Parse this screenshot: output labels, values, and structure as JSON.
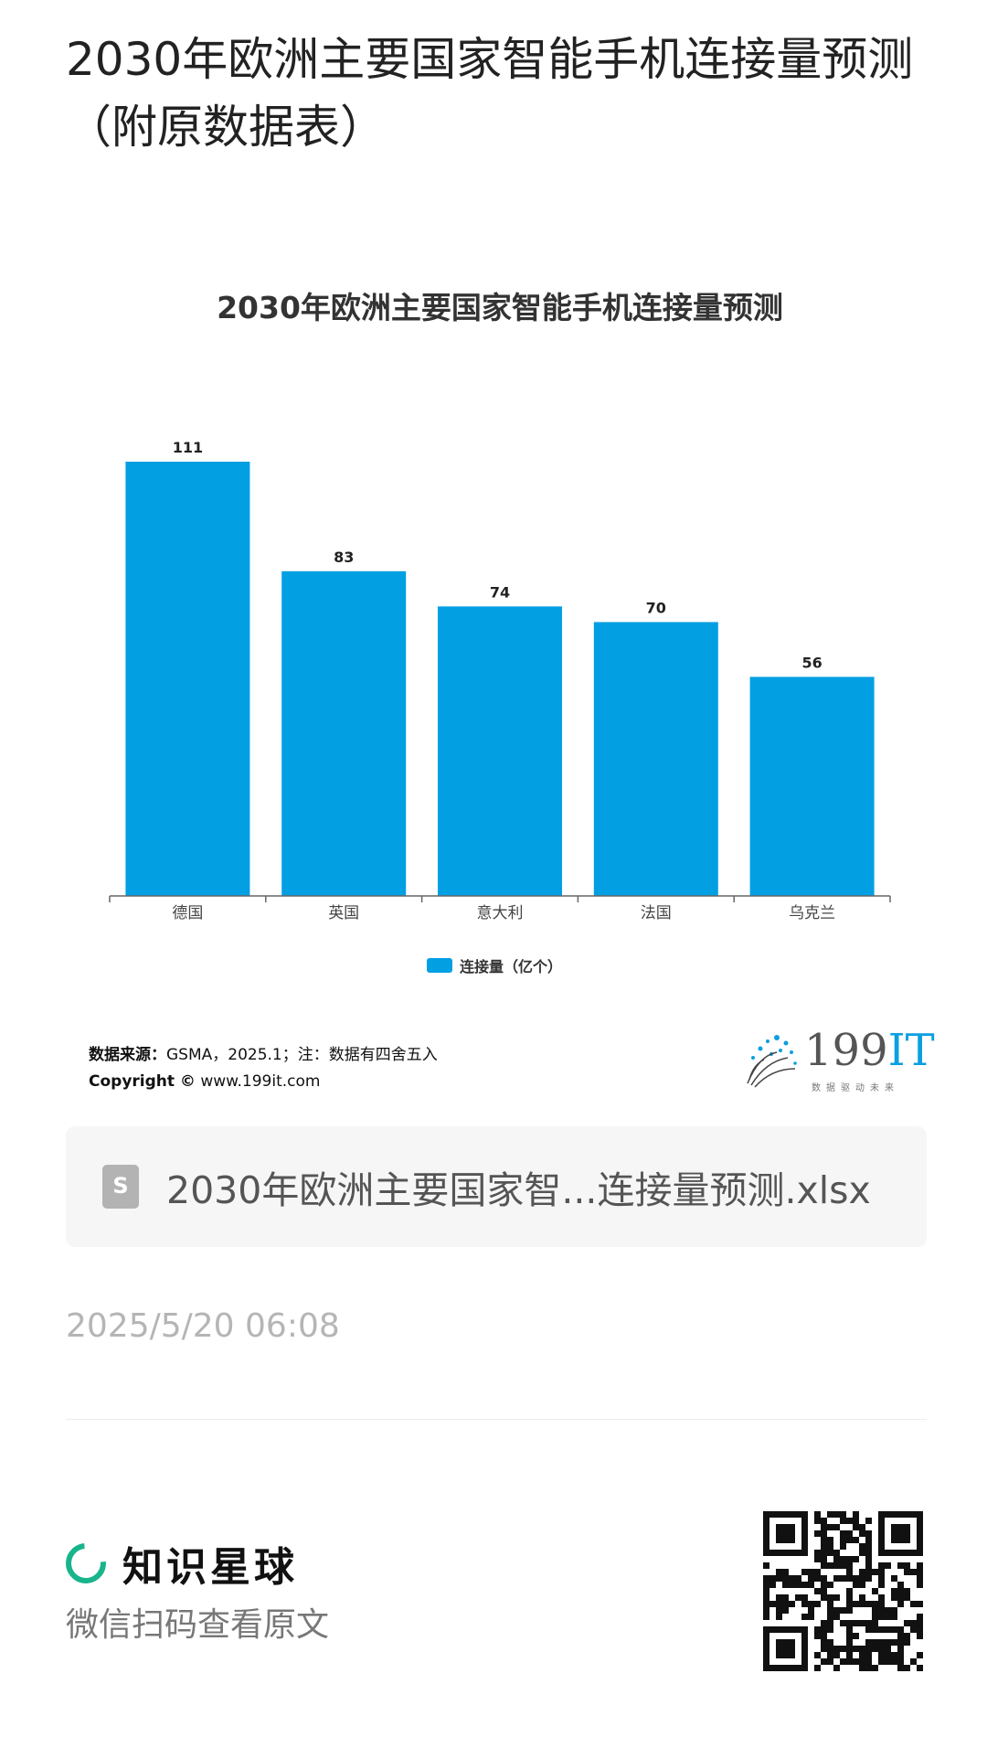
{
  "page": {
    "title": "2030年欧洲主要国家智能手机连接量预测（附原数据表）"
  },
  "chart_data": {
    "type": "bar",
    "title": "2030年欧洲主要国家智能手机连接量预测",
    "categories": [
      "德国",
      "英国",
      "意大利",
      "法国",
      "乌克兰"
    ],
    "series": [
      {
        "name": "连接量（亿个）",
        "values": [
          111,
          83,
          74,
          70,
          56
        ]
      }
    ],
    "data_labels": [
      "111",
      "83",
      "74",
      "70",
      "56"
    ],
    "xlabel": "",
    "ylabel": "",
    "ylim": [
      0,
      111
    ],
    "grid": false,
    "legend": "bottom-center",
    "bar_color": "#039fe3"
  },
  "source": {
    "label": "数据来源：",
    "text": "GSMA，2025.1；注：数据有四舍五入",
    "copyright_label": "Copyright ©",
    "copyright_url": "www.199it.com"
  },
  "logo": {
    "name_digits": "199",
    "name_it": "IT",
    "tagline": "数据驱动未来"
  },
  "attachment": {
    "icon": "spreadsheet-file-icon",
    "filename": "2030年欧洲主要国家智...连接量预测.xlsx"
  },
  "post": {
    "timestamp": "2025/5/20 06:08"
  },
  "footer": {
    "brand_icon": "zsxq-logo-icon",
    "brand_name": "知识星球",
    "scan_text": "微信扫码查看原文",
    "qr_icon": "qr-code-icon"
  }
}
